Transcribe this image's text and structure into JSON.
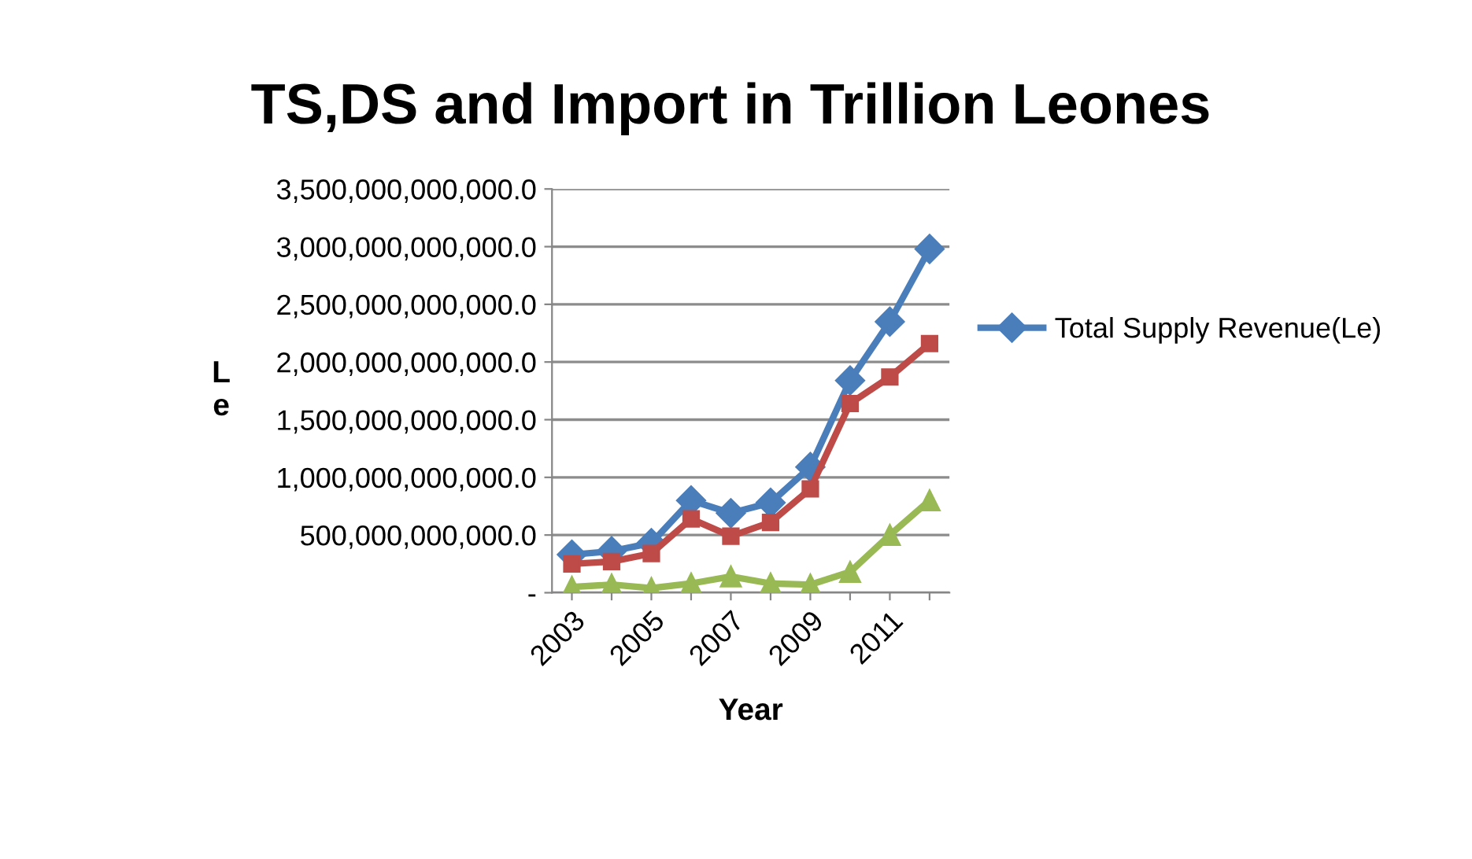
{
  "chart_data": {
    "type": "line",
    "title": "TS,DS and Import in Trillion Leones",
    "xlabel": "Year",
    "ylabel": "L\ne",
    "categories": [
      "2003",
      null,
      "2005",
      null,
      "2007",
      null,
      "2009",
      null,
      "2011",
      null
    ],
    "series": [
      {
        "name": "Total Supply Revenue(Le)",
        "color": "#4a7ebb",
        "marker": "diamond",
        "values": [
          330000000000,
          360000000000,
          430000000000,
          800000000000,
          690000000000,
          780000000000,
          1090000000000,
          1840000000000,
          2350000000000,
          2980000000000
        ]
      },
      {
        "color": "#be4b48",
        "marker": "square",
        "values": [
          250000000000,
          270000000000,
          340000000000,
          640000000000,
          490000000000,
          610000000000,
          900000000000,
          1640000000000,
          1870000000000,
          2160000000000
        ]
      },
      {
        "color": "#98b954",
        "marker": "triangle",
        "values": [
          50000000000,
          70000000000,
          40000000000,
          80000000000,
          140000000000,
          80000000000,
          70000000000,
          180000000000,
          500000000000,
          800000000000
        ]
      }
    ],
    "ylim": [
      0,
      3500000000000
    ],
    "yticks": [
      {
        "value": 0,
        "label": "-"
      },
      {
        "value": 500000000000,
        "label": "500,000,000,000.0"
      },
      {
        "value": 1000000000000,
        "label": "1,000,000,000,000.0"
      },
      {
        "value": 1500000000000,
        "label": "1,500,000,000,000.0"
      },
      {
        "value": 2000000000000,
        "label": "2,000,000,000,000.0"
      },
      {
        "value": 2500000000000,
        "label": "2,500,000,000,000.0"
      },
      {
        "value": 3000000000000,
        "label": "3,000,000,000,000.0"
      },
      {
        "value": 3500000000000,
        "label": "3,500,000,000,000.0"
      }
    ],
    "grid": "y",
    "legend": "right",
    "line_style": "solid"
  }
}
